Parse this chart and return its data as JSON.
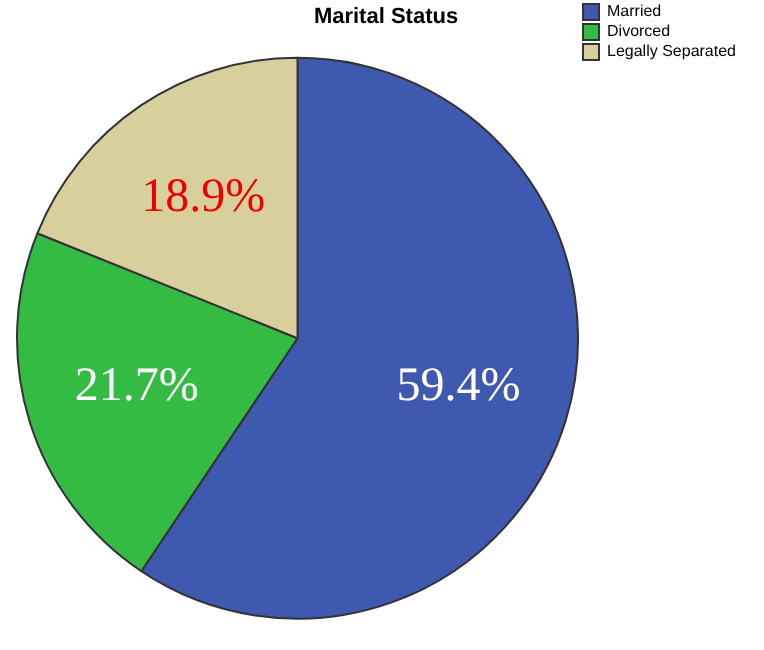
{
  "chart_data": {
    "type": "pie",
    "title": "Marital Status",
    "categories": [
      "Married",
      "Divorced",
      "Legally Separated"
    ],
    "values": [
      59.4,
      21.7,
      18.9
    ],
    "colors": [
      "#3f58b0",
      "#33bb44",
      "#d8d09c"
    ],
    "value_labels": [
      "59.4%",
      "21.7%",
      "18.9%"
    ],
    "legend": "top right"
  }
}
